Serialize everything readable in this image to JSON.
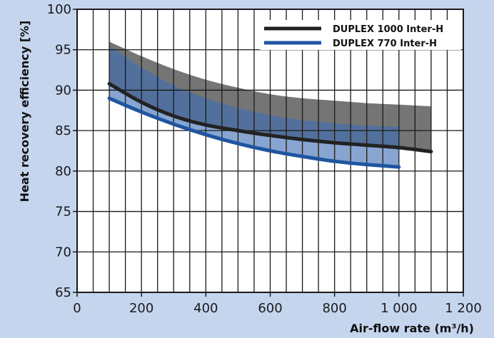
{
  "chart_data": {
    "type": "line",
    "title": "",
    "xlabel": "Air-flow rate (m³/h)",
    "ylabel": "Heat recovery efficiency [%]",
    "xlim": [
      0,
      1200
    ],
    "ylim": [
      65,
      100
    ],
    "x_ticks": [
      0,
      200,
      400,
      600,
      800,
      1000,
      1200
    ],
    "x_tick_labels": [
      "0",
      "200",
      "400",
      "600",
      "800",
      "1 000",
      "1 200"
    ],
    "y_ticks": [
      65,
      70,
      75,
      80,
      85,
      90,
      95,
      100
    ],
    "y_tick_labels": [
      "65",
      "70",
      "75",
      "80",
      "85",
      "90",
      "95",
      "100"
    ],
    "grid": true,
    "legend_position": "top-right",
    "colors": {
      "background": "#c5d5ee",
      "plot_area": "#ffffff",
      "grid": "#1a1a1a"
    },
    "series": [
      {
        "name": "DUPLEX 1000 Inter-H",
        "color": "#222222",
        "band_color": "#6e6e6e",
        "x": [
          100,
          200,
          300,
          400,
          500,
          600,
          700,
          800,
          900,
          1000,
          1100
        ],
        "values": [
          90.8,
          88.5,
          86.8,
          85.7,
          85.0,
          84.4,
          83.9,
          83.5,
          83.2,
          82.9,
          82.4
        ],
        "band_upper": [
          96.0,
          94.2,
          92.6,
          91.3,
          90.3,
          89.5,
          89.0,
          88.7,
          88.4,
          88.2,
          88.0
        ],
        "band_lower": [
          90.8,
          88.5,
          86.8,
          85.7,
          85.0,
          84.4,
          83.9,
          83.5,
          83.2,
          82.9,
          82.4
        ]
      },
      {
        "name": "DUPLEX 770 Inter-H",
        "color": "#1f55a0",
        "band_color": "#3d6db3",
        "x": [
          100,
          200,
          300,
          400,
          500,
          600,
          700,
          800,
          900,
          1000
        ],
        "values": [
          89.0,
          87.3,
          85.8,
          84.5,
          83.4,
          82.5,
          81.8,
          81.2,
          80.8,
          80.5
        ],
        "band_upper": [
          95.5,
          92.8,
          90.6,
          89.0,
          87.8,
          86.9,
          86.3,
          85.9,
          85.6,
          85.5
        ],
        "band_lower": [
          89.0,
          87.3,
          85.8,
          84.5,
          83.4,
          82.5,
          81.8,
          81.2,
          80.8,
          80.5
        ]
      }
    ]
  }
}
